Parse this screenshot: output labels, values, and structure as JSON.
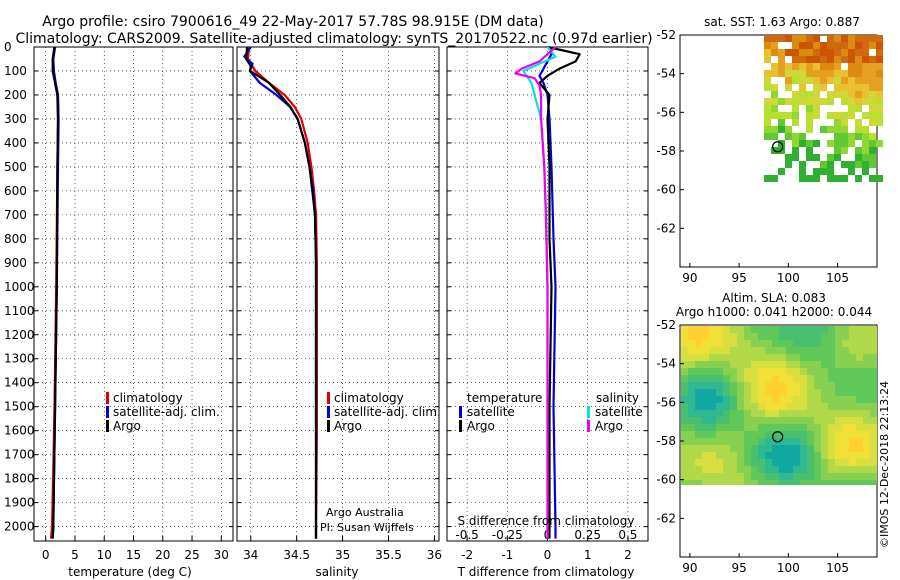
{
  "header": {
    "title_line1": "Argo profile: csiro 7900616_49 22-May-2017 57.78S 98.915E (DM data)",
    "title_line2": "Climatology: CARS2009. Satellite-adjusted climatology: synTS_20170522.nc (0.97d earlier)"
  },
  "depth_ticks": [
    "0",
    "100",
    "200",
    "300",
    "400",
    "500",
    "600",
    "700",
    "800",
    "900",
    "1000",
    "1100",
    "1200",
    "1300",
    "1400",
    "1500",
    "1600",
    "1700",
    "1800",
    "1900",
    "2000"
  ],
  "colors": {
    "climatology": "#e00000",
    "satellite": "#0000dd",
    "argo": "#000000",
    "sat_cyan": "#00e5e5",
    "argo_magenta": "#ee00ee"
  },
  "chart_data": [
    {
      "type": "line",
      "title": "",
      "xlabel": "temperature (deg C)",
      "ylabel": "depth",
      "xlim": [
        -2,
        32
      ],
      "ylim": [
        2060,
        0
      ],
      "xticks": [
        "0",
        "5",
        "10",
        "15",
        "20",
        "25",
        "30"
      ],
      "grid": true,
      "legend": {
        "position": "lower-right",
        "entries": [
          "climatology",
          "satellite-adj. clim.",
          "Argo"
        ]
      },
      "series": [
        {
          "name": "climatology",
          "color": "#e00000",
          "depth": [
            0,
            50,
            100,
            150,
            200,
            300,
            500,
            1000,
            1500,
            2000,
            2050
          ],
          "values": [
            1.5,
            1.2,
            1.3,
            1.6,
            2.0,
            2.1,
            2.0,
            1.8,
            1.5,
            1.1,
            0.9
          ]
        },
        {
          "name": "satellite-adj. clim.",
          "color": "#0000dd",
          "depth": [
            0,
            50,
            100,
            150,
            200,
            300,
            500,
            1000,
            1500,
            2000,
            2050
          ],
          "values": [
            1.6,
            1.3,
            1.4,
            1.7,
            2.1,
            2.2,
            2.1,
            1.9,
            1.6,
            1.3,
            1.2
          ]
        },
        {
          "name": "Argo",
          "color": "#000000",
          "depth": [
            0,
            50,
            100,
            150,
            200,
            300,
            500,
            1000,
            1500,
            2000,
            2050
          ],
          "values": [
            1.5,
            1.2,
            1.2,
            1.6,
            2.0,
            2.1,
            2.0,
            1.9,
            1.6,
            1.3,
            1.2
          ]
        }
      ]
    },
    {
      "type": "line",
      "title": "",
      "xlabel": "salinity",
      "ylabel": "depth",
      "xlim": [
        33.85,
        36.05
      ],
      "ylim": [
        2060,
        0
      ],
      "xticks": [
        "34",
        "34.5",
        "35",
        "35.5",
        "36"
      ],
      "grid": true,
      "legend": {
        "position": "lower-right",
        "entries": [
          "climatology",
          "satellite-adj. clim.",
          "Argo"
        ]
      },
      "annotations": [
        "Argo Australia",
        "PI: Susan Wijffels"
      ],
      "series": [
        {
          "name": "climatology",
          "color": "#e00000",
          "depth": [
            0,
            50,
            100,
            150,
            200,
            250,
            300,
            400,
            500,
            600,
            700,
            900,
            1200,
            1600,
            2000,
            2050
          ],
          "values": [
            33.98,
            33.97,
            34.05,
            34.2,
            34.37,
            34.48,
            34.55,
            34.62,
            34.66,
            34.69,
            34.71,
            34.72,
            34.72,
            34.72,
            34.71,
            34.71
          ]
        },
        {
          "name": "satellite-adj. clim.",
          "color": "#0000dd",
          "depth": [
            0,
            40,
            70,
            100,
            150,
            200,
            250,
            300,
            400,
            500,
            600,
            700,
            900,
            1200,
            1600,
            2000,
            2050
          ],
          "values": [
            34.0,
            33.93,
            34.02,
            33.99,
            34.1,
            34.28,
            34.43,
            34.51,
            34.59,
            34.64,
            34.68,
            34.7,
            34.71,
            34.71,
            34.71,
            34.71,
            34.71
          ]
        },
        {
          "name": "Argo",
          "color": "#000000",
          "depth": [
            0,
            50,
            80,
            100,
            120,
            150,
            200,
            250,
            300,
            400,
            500,
            600,
            700,
            900,
            1200,
            1600,
            2000,
            2050
          ],
          "values": [
            33.96,
            33.95,
            34.0,
            33.99,
            34.08,
            34.2,
            34.32,
            34.43,
            34.51,
            34.59,
            34.64,
            34.67,
            34.7,
            34.71,
            34.71,
            34.71,
            34.71,
            34.71
          ]
        }
      ]
    },
    {
      "type": "line",
      "title": "",
      "xlabel": "T difference from climatology",
      "xlabel_top": "S difference from climatology",
      "ylabel": "depth",
      "xlim": [
        -2.5,
        2.5
      ],
      "xlim_top": [
        -0.625,
        0.625
      ],
      "ylim": [
        2060,
        0
      ],
      "xticks": [
        "-2",
        "-1",
        "0",
        "1",
        "2"
      ],
      "xticks_top": [
        "-0.5",
        "-0.25",
        "0",
        "0.25",
        "0.5"
      ],
      "grid": true,
      "legend": {
        "position": "lower",
        "groups": [
          "temperature",
          "salinity"
        ],
        "entries": [
          "satellite",
          "Argo",
          "satellite",
          "Argo"
        ]
      },
      "series": [
        {
          "name": "temperature satellite",
          "color": "#0000dd",
          "depth": [
            0,
            30,
            60,
            90,
            120,
            150,
            200,
            300,
            500,
            800,
            1000,
            1500,
            2000,
            2050
          ],
          "values": [
            0.1,
            0.1,
            0.0,
            -0.1,
            -0.2,
            -0.1,
            0.0,
            0.05,
            0.1,
            0.15,
            0.2,
            0.15,
            0.2,
            0.2
          ]
        },
        {
          "name": "temperature Argo",
          "color": "#000000",
          "depth": [
            0,
            30,
            60,
            90,
            120,
            150,
            200,
            300,
            500,
            800,
            1000,
            1500,
            2000,
            2050
          ],
          "values": [
            0.0,
            0.8,
            0.7,
            0.3,
            0.0,
            -0.2,
            0.05,
            0.0,
            0.05,
            0.05,
            0.1,
            0.05,
            0.05,
            0.05
          ]
        },
        {
          "name": "salinity satellite",
          "color": "#00e5e5",
          "depth": [
            0,
            40,
            70,
            100,
            150,
            200,
            300,
            400,
            500,
            700,
            1000,
            1500,
            2000,
            2050
          ],
          "values": [
            0.0,
            0.05,
            -0.05,
            -0.15,
            -0.1,
            -0.08,
            -0.04,
            -0.03,
            -0.02,
            -0.01,
            0.0,
            0.0,
            0.0,
            0.0
          ]
        },
        {
          "name": "salinity Argo",
          "color": "#ee00ee",
          "depth": [
            0,
            30,
            60,
            90,
            110,
            130,
            160,
            200,
            300,
            400,
            500,
            700,
            1000,
            1500,
            2000,
            2050
          ],
          "values": [
            0.05,
            0.0,
            -0.05,
            -0.16,
            -0.2,
            -0.08,
            -0.05,
            -0.04,
            -0.04,
            -0.03,
            -0.02,
            -0.01,
            0.0,
            0.0,
            0.0,
            0.0
          ]
        }
      ]
    },
    {
      "type": "heatmap",
      "title": "sat. SST: 1.63 Argo: 0.887",
      "xlim": [
        89,
        109
      ],
      "ylim": [
        -64,
        -52
      ],
      "xticks": [
        "90",
        "95",
        "100",
        "105"
      ],
      "yticks": [
        "-52",
        "-54",
        "-56",
        "-58",
        "-60",
        "-62"
      ],
      "marker": {
        "lon": 98.915,
        "lat": -57.78
      }
    },
    {
      "type": "heatmap",
      "title_line1": "Altim. SLA: 0.083",
      "title_line2": "Argo h1000: 0.041 h2000: 0.044",
      "xlim": [
        89,
        109
      ],
      "ylim": [
        -64,
        -52
      ],
      "xticks": [
        "90",
        "95",
        "100",
        "105"
      ],
      "yticks": [
        "-52",
        "-54",
        "-56",
        "-58",
        "-60",
        "-62"
      ],
      "marker": {
        "lon": 98.915,
        "lat": -57.78
      }
    }
  ],
  "panel1": {
    "xlabel": "temperature (deg C)",
    "legend": [
      "climatology",
      "satellite-adj. clim.",
      "Argo"
    ]
  },
  "panel2": {
    "xlabel": "salinity",
    "legend": [
      "climatology",
      "satellite-adj. clim.",
      "Argo"
    ],
    "credit1": "Argo Australia",
    "credit2": "PI: Susan Wijffels"
  },
  "panel3": {
    "xlabel": "T difference from climatology",
    "xlabel_top": "S difference from climatology",
    "leg_temp": "temperature",
    "leg_sal": "salinity",
    "leg_t_sat": "satellite",
    "leg_t_argo": "Argo",
    "leg_s_sat": "satellite",
    "leg_s_argo": "Argo"
  },
  "map_sst": {
    "title": "sat. SST: 1.63 Argo: 0.887"
  },
  "map_sla": {
    "title1": "Altim. SLA: 0.083",
    "title2": "Argo h1000: 0.041 h2000: 0.044"
  },
  "footer": {
    "imos": "©IMOS 12-Dec-2018 22:13:24"
  }
}
